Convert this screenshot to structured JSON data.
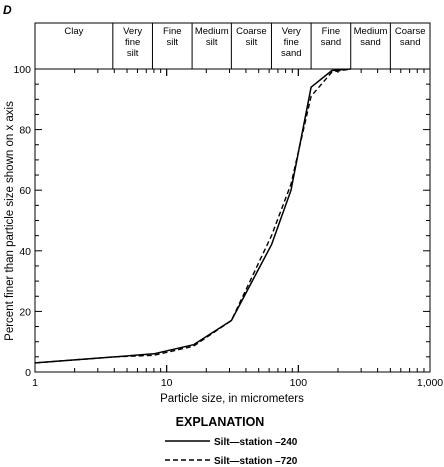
{
  "panel_letter": "D",
  "explanation_title": "EXPLANATION",
  "chart_data": {
    "type": "line",
    "x_scale": "log",
    "xlabel": "Particle size, in micrometers",
    "ylabel": "Percent finer than particle size shown on x axis",
    "xlim": [
      1,
      1000
    ],
    "ylim": [
      0,
      100
    ],
    "x_tick_labels": [
      "1",
      "10",
      "100",
      "1,000"
    ],
    "x_tick_values": [
      1,
      10,
      100,
      1000
    ],
    "y_ticks": [
      0,
      20,
      40,
      60,
      80,
      100
    ],
    "grid": false,
    "legend_position": "bottom",
    "size_classes": [
      {
        "lines": [
          "Clay"
        ],
        "from": 1,
        "to": 3.9
      },
      {
        "lines": [
          "Very",
          "fine",
          "silt"
        ],
        "from": 3.9,
        "to": 7.8
      },
      {
        "lines": [
          "Fine",
          "silt"
        ],
        "from": 7.8,
        "to": 15.6
      },
      {
        "lines": [
          "Medium",
          "silt"
        ],
        "from": 15.6,
        "to": 31
      },
      {
        "lines": [
          "Coarse",
          "silt"
        ],
        "from": 31,
        "to": 62.5
      },
      {
        "lines": [
          "Very",
          "fine",
          "sand"
        ],
        "from": 62.5,
        "to": 125
      },
      {
        "lines": [
          "Fine",
          "sand"
        ],
        "from": 125,
        "to": 250
      },
      {
        "lines": [
          "Medium",
          "sand"
        ],
        "from": 250,
        "to": 500
      },
      {
        "lines": [
          "Coarse",
          "sand"
        ],
        "from": 500,
        "to": 1000
      }
    ],
    "series": [
      {
        "name": "Silt—station –240",
        "style": "solid",
        "x": [
          1,
          2,
          4,
          8,
          16,
          31,
          62.5,
          88,
          125,
          180,
          250
        ],
        "y": [
          3,
          4,
          5,
          6,
          9,
          17,
          42,
          60,
          94,
          99.5,
          100
        ]
      },
      {
        "name": "Silt—station –720",
        "style": "dashed",
        "x": [
          1,
          2,
          4,
          8,
          16,
          31,
          62.5,
          88,
          125,
          180,
          250
        ],
        "y": [
          3,
          4,
          5,
          5.5,
          8.5,
          17,
          45,
          62,
          91,
          99,
          100
        ]
      }
    ]
  }
}
